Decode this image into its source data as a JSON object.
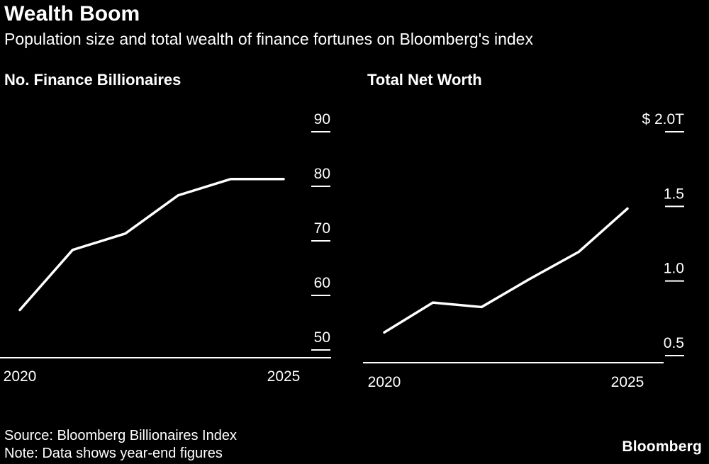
{
  "header": {
    "title": "Wealth Boom",
    "subtitle": "Population size and total wealth of finance fortunes on Bloomberg's index"
  },
  "footer": {
    "source": "Source: Bloomberg Billionaires Index",
    "note": "Note: Data shows year-end figures",
    "brand": "Bloomberg"
  },
  "colors": {
    "background": "#000000",
    "text": "#ffffff",
    "line": "#ffffff",
    "axis": "#ffffff"
  },
  "chart_data": [
    {
      "type": "line",
      "title": "No. Finance Billionaires",
      "x": [
        2020,
        2021,
        2022,
        2023,
        2024,
        2025
      ],
      "values": [
        55,
        66,
        69,
        76,
        79,
        79
      ],
      "yticks": [
        50,
        60,
        70,
        80,
        90
      ],
      "ytick_labels": [
        "50",
        "60",
        "70",
        "80",
        "90"
      ],
      "xtick_labels": [
        "2020",
        "2025"
      ],
      "xlabel": "",
      "ylabel": "",
      "ylim": [
        46,
        93
      ],
      "grid": false,
      "legend": "none"
    },
    {
      "type": "line",
      "title": "Total Net Worth",
      "x": [
        2020,
        2021,
        2022,
        2023,
        2024,
        2025
      ],
      "values": [
        0.57,
        0.77,
        0.74,
        0.93,
        1.11,
        1.4
      ],
      "yticks": [
        0.5,
        1.0,
        1.5,
        2.0
      ],
      "ytick_labels": [
        "0.5",
        "1.0",
        "1.5",
        "$ 2.0T"
      ],
      "xtick_labels": [
        "2020",
        "2025"
      ],
      "xlabel": "",
      "ylabel": "",
      "ylim": [
        0.37,
        2.15
      ],
      "grid": false,
      "legend": "none"
    }
  ]
}
